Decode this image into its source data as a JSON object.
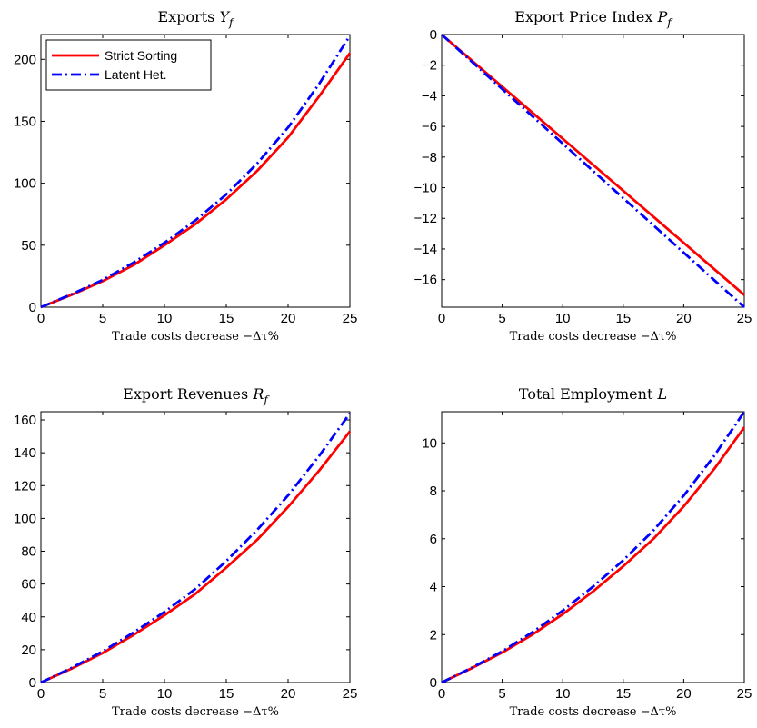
{
  "chart_data": [
    {
      "type": "line",
      "title_main": "Exports ",
      "title_sym": "Y",
      "title_sub": "f",
      "xlabel": "Trade costs decrease −Δτ%",
      "xlim": [
        0,
        25
      ],
      "ylim": [
        0,
        220
      ],
      "xticks": [
        0,
        5,
        10,
        15,
        20,
        25
      ],
      "yticks": [
        0,
        50,
        100,
        150,
        200
      ],
      "legend": "top-left",
      "x": [
        0,
        2.5,
        5,
        7.5,
        10,
        12.5,
        15,
        17.5,
        20,
        22.5,
        25
      ],
      "series": [
        {
          "name": "Strict Sorting",
          "color": "#ff0000",
          "style": "solid",
          "values": [
            0,
            10,
            21,
            34,
            50,
            67,
            87,
            110,
            137,
            170,
            205
          ]
        },
        {
          "name": "Latent Het.",
          "color": "#0000ff",
          "style": "dashdot",
          "values": [
            0,
            10.5,
            22,
            36,
            52,
            70,
            91,
            116,
            145,
            180,
            219
          ]
        }
      ]
    },
    {
      "type": "line",
      "title_main": "Export Price Index ",
      "title_sym": "P",
      "title_sub": "f",
      "xlabel": "Trade costs decrease −Δτ%",
      "xlim": [
        0,
        25
      ],
      "ylim": [
        -17.8,
        0
      ],
      "xticks": [
        0,
        5,
        10,
        15,
        20,
        25
      ],
      "yticks": [
        0,
        -2,
        -4,
        -6,
        -8,
        -10,
        -12,
        -14,
        -16
      ],
      "ytick_labels": [
        "0",
        "−2",
        "−4",
        "−6",
        "−8",
        "−10",
        "−12",
        "−14",
        "−16"
      ],
      "x": [
        0,
        25
      ],
      "series": [
        {
          "name": "Strict Sorting",
          "color": "#ff0000",
          "style": "solid",
          "values": [
            0,
            -17.0
          ]
        },
        {
          "name": "Latent Het.",
          "color": "#0000ff",
          "style": "dashdot",
          "values": [
            0,
            -17.8
          ]
        }
      ]
    },
    {
      "type": "line",
      "title_main": "Export Revenues ",
      "title_sym": "R",
      "title_sub": "f",
      "xlabel": "Trade costs decrease −Δτ%",
      "xlim": [
        0,
        25
      ],
      "ylim": [
        0,
        165
      ],
      "xticks": [
        0,
        5,
        10,
        15,
        20,
        25
      ],
      "yticks": [
        0,
        20,
        40,
        60,
        80,
        100,
        120,
        140,
        160
      ],
      "x": [
        0,
        2.5,
        5,
        7.5,
        10,
        12.5,
        15,
        17.5,
        20,
        22.5,
        25
      ],
      "series": [
        {
          "name": "Strict Sorting",
          "color": "#ff0000",
          "style": "solid",
          "values": [
            0,
            8.5,
            18,
            29,
            41,
            54,
            70,
            87,
            107,
            129,
            153
          ]
        },
        {
          "name": "Latent Het.",
          "color": "#0000ff",
          "style": "dashdot",
          "values": [
            0,
            9,
            19,
            30.5,
            43,
            57,
            74,
            93,
            114,
            138,
            164
          ]
        }
      ]
    },
    {
      "type": "line",
      "title_main": "Total Employment ",
      "title_sym": "L",
      "title_sub": "",
      "xlabel": "Trade costs decrease −Δτ%",
      "xlim": [
        0,
        25
      ],
      "ylim": [
        0,
        11.3
      ],
      "xticks": [
        0,
        5,
        10,
        15,
        20,
        25
      ],
      "yticks": [
        0,
        2,
        4,
        6,
        8,
        10
      ],
      "x": [
        0,
        2.5,
        5,
        7.5,
        10,
        12.5,
        15,
        17.5,
        20,
        22.5,
        25
      ],
      "series": [
        {
          "name": "Strict Sorting",
          "color": "#ff0000",
          "style": "solid",
          "values": [
            0,
            0.6,
            1.25,
            2.0,
            2.85,
            3.8,
            4.85,
            6.0,
            7.35,
            8.9,
            10.65
          ]
        },
        {
          "name": "Latent Het.",
          "color": "#0000ff",
          "style": "dashdot",
          "values": [
            0,
            0.62,
            1.3,
            2.1,
            3.0,
            4.0,
            5.1,
            6.35,
            7.8,
            9.45,
            11.3
          ]
        }
      ]
    }
  ]
}
